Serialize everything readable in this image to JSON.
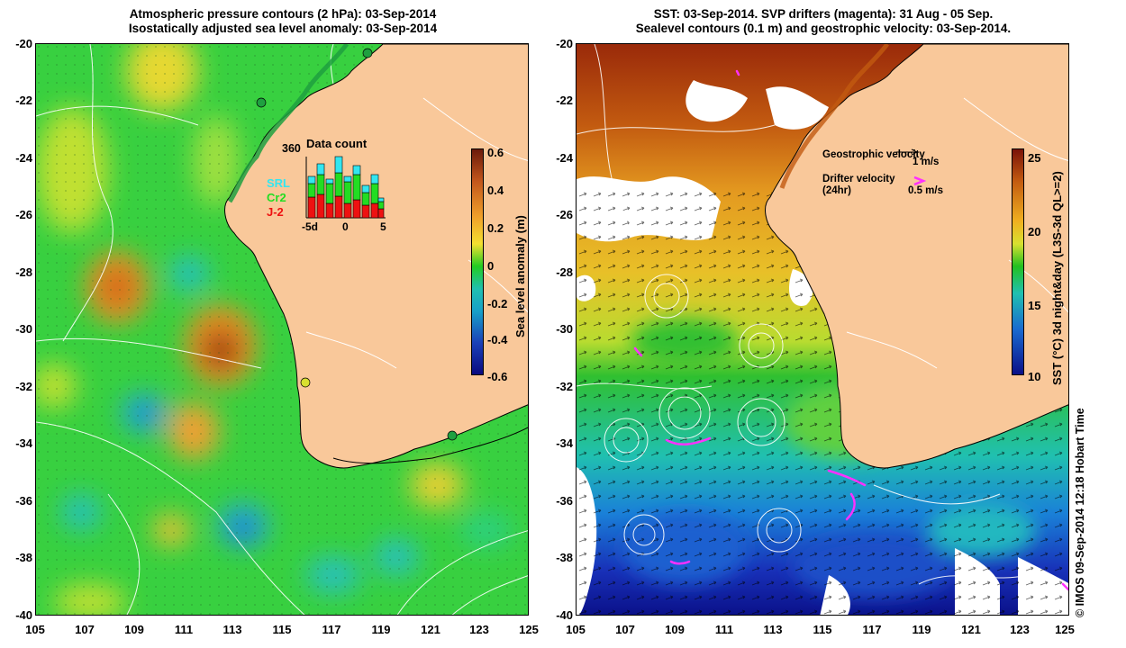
{
  "left_panel": {
    "title_line1": "Atmospheric pressure contours (2 hPa): 03-Sep-2014",
    "title_line2": "Isostatically adjusted sea level anomaly: 03-Sep-2014",
    "colorbar_label": "Sea level anomaly (m)",
    "colorbar_ticks": [
      "0.6",
      "0.4",
      "0.2",
      "0",
      "-0.2",
      "-0.4",
      "-0.6"
    ],
    "inset": {
      "title": "Data count",
      "ymax_label": "360",
      "x_ticks": [
        "-5d",
        "0",
        "5"
      ],
      "legend": [
        {
          "label": "SRL",
          "color": "#33e6f0"
        },
        {
          "label": "Cr2",
          "color": "#22dd22"
        },
        {
          "label": "J-2",
          "color": "#ee1111"
        }
      ]
    }
  },
  "right_panel": {
    "title_line1": "SST: 03-Sep-2014. SVP drifters (magenta): 31 Aug - 05 Sep.",
    "title_line2": "Sealevel contours (0.1 m) and geostrophic velocity: 03-Sep-2014.",
    "colorbar_label": "SST (°C) 3d night&day (L3S-3d QL>=2)",
    "colorbar_ticks": [
      "25",
      "20",
      "15",
      "10"
    ],
    "geostrophic_label": "Geostrophic velocity",
    "geostrophic_scale": "1 m/s",
    "drifter_label_line1": "Drifter velocity",
    "drifter_label_line2": "(24hr)",
    "drifter_scale": "0.5 m/s"
  },
  "y_axis_labels": [
    "-20",
    "-22",
    "-24",
    "-26",
    "-28",
    "-30",
    "-32",
    "-34",
    "-36",
    "-38",
    "-40"
  ],
  "x_axis_labels": [
    "105",
    "107",
    "109",
    "111",
    "113",
    "115",
    "117",
    "119",
    "121",
    "123",
    "125"
  ],
  "credit": "© IMOS 09-Sep-2014 12:18 Hobart Time",
  "colors": {
    "land": "#f9c89a",
    "sla_cmap": [
      "#6b1a0a",
      "#c2561c",
      "#f0a02a",
      "#f4e030",
      "#22cc22",
      "#18a0c8",
      "#1a40b8",
      "#0a0a80"
    ],
    "sst_cmap": [
      "#7a1208",
      "#c25a10",
      "#f0b020",
      "#d8e030",
      "#22c020",
      "#20c0b0",
      "#1a6ad0",
      "#0a1088"
    ]
  }
}
